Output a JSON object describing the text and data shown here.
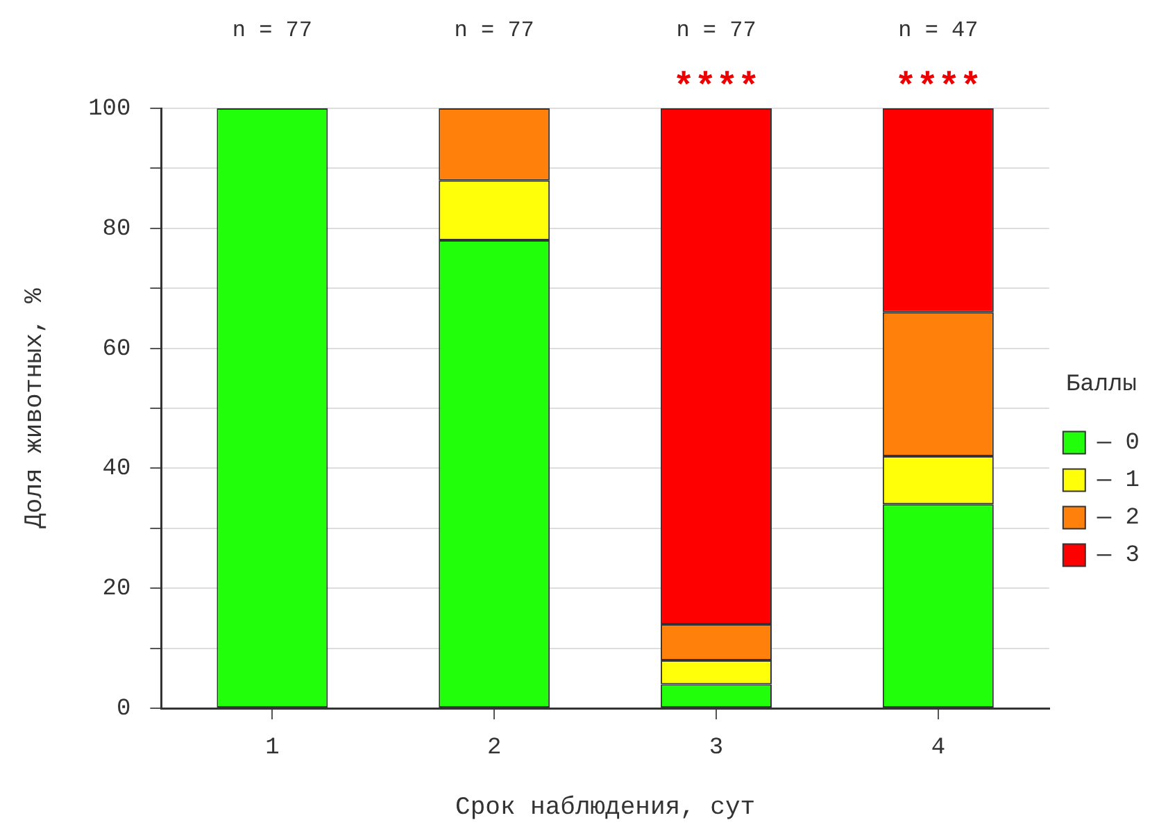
{
  "chart_data": {
    "type": "bar",
    "stacked": true,
    "xlabel": "Срок наблюдения, сут",
    "ylabel": "Доля животных, %",
    "legend_title": "Баллы",
    "legend": "right",
    "categories": [
      "1",
      "2",
      "3",
      "4"
    ],
    "series": [
      {
        "name": "— 0",
        "color": "#22ff0a",
        "values": [
          100,
          78,
          4,
          34
        ]
      },
      {
        "name": "— 1",
        "color": "#ffff0a",
        "values": [
          0,
          10,
          4,
          8
        ]
      },
      {
        "name": "— 2",
        "color": "#ff800a",
        "values": [
          0,
          12,
          6,
          24
        ]
      },
      {
        "name": "— 3",
        "color": "#ff0000",
        "values": [
          0,
          0,
          86,
          34
        ]
      }
    ],
    "ylim": [
      0,
      100
    ],
    "yticks": [
      0,
      {
        "value": 10,
        "label": null
      },
      20,
      {
        "value": 30,
        "label": null
      },
      40,
      {
        "value": 50,
        "label": null
      },
      60,
      {
        "value": 70,
        "label": null
      },
      80,
      {
        "value": 90,
        "label": null
      },
      100
    ],
    "grid": "y",
    "annotations": [
      "n = 77",
      "n = 77",
      "n = 77",
      "n = 47",
      {
        "text": "****",
        "x": "3",
        "y": 100
      },
      {
        "text": "****",
        "x": "4",
        "y": 100
      }
    ]
  }
}
